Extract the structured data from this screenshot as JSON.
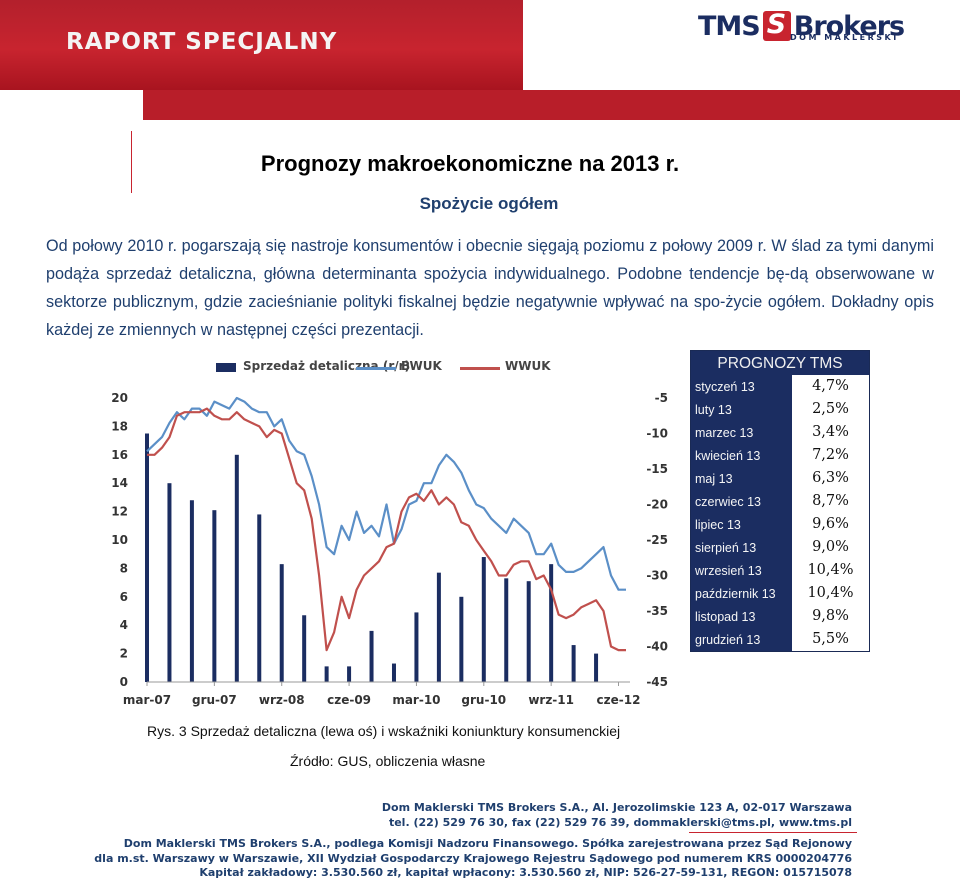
{
  "header": {
    "banner_text": "RAPORT SPECJALNY",
    "logo_brand_left": "TMS",
    "logo_brand_right": "Brokers",
    "logo_subtitle": "DOM MAKLERSKI",
    "accent_color": "#c8242f",
    "navy_color": "#1b2d61"
  },
  "document": {
    "title": "Prognozy makroekonomiczne na 2013 r.",
    "subtitle": "Spożycie ogółem",
    "body": "Od połowy 2010 r. pogarszają się nastroje konsumentów i obecnie sięgają poziomu z połowy 2009 r. W ślad za tymi danymi podąża sprzedaż detaliczna, główna determinanta spożycia indywidualnego. Podobne tendencje bę-dą obserwowane w sektorze publicznym, gdzie zacieśnianie polityki fiskalnej będzie negatywnie wpływać na spo-życie ogółem. Dokładny opis każdej ze zmiennych w następnej części prezentacji.",
    "caption": "Rys. 3 Sprzedaż detaliczna (lewa oś) i wskaźniki koniunktury konsumenckiej",
    "source": "Źródło: GUS, obliczenia własne"
  },
  "chart_data": {
    "type": "bar",
    "series": [
      {
        "name": "Sprzedaż detaliczna (r/r)",
        "kind": "bar",
        "axis": "left",
        "color": "#1b2d61",
        "x": [
          0,
          3,
          6,
          9,
          12,
          15,
          18,
          21,
          24,
          27,
          30,
          33,
          36,
          39,
          42,
          45,
          48,
          51,
          54,
          57,
          60,
          63
        ],
        "values": [
          17.5,
          14.0,
          12.8,
          12.1,
          16.0,
          11.8,
          8.3,
          4.7,
          1.1,
          1.1,
          3.6,
          1.3,
          4.9,
          7.7,
          6.0,
          8.8,
          7.3,
          7.1,
          8.3,
          2.6,
          2.0,
          null
        ]
      },
      {
        "name": "BWUK",
        "kind": "line",
        "axis": "right",
        "color": "#5b8fc7",
        "x": [
          0,
          1,
          2,
          3,
          4,
          5,
          6,
          7,
          8,
          9,
          10,
          11,
          12,
          13,
          14,
          15,
          16,
          17,
          18,
          19,
          20,
          21,
          22,
          23,
          24,
          25,
          26,
          27,
          28,
          29,
          30,
          31,
          32,
          33,
          34,
          35,
          36,
          37,
          38,
          39,
          40,
          41,
          42,
          43,
          44,
          45,
          46,
          47,
          48,
          49,
          50,
          51,
          52,
          53,
          54,
          55,
          56,
          57,
          58,
          59,
          60,
          61,
          62,
          63,
          64
        ],
        "values": [
          -12.5,
          -11.5,
          -10.5,
          -8.5,
          -7,
          -8,
          -6.5,
          -6.5,
          -7.5,
          -5.5,
          -6,
          -6.5,
          -5,
          -5.5,
          -6.5,
          -7,
          -7,
          -9,
          -8,
          -11,
          -12.5,
          -13,
          -16,
          -20,
          -26,
          -27,
          -23,
          -25,
          -21,
          -24,
          -23,
          -24.5,
          -20,
          -25.5,
          -23.5,
          -20,
          -19.5,
          -17,
          -17,
          -14.5,
          -13,
          -14,
          -15.5,
          -18,
          -20,
          -20.5,
          -22,
          -23,
          -24,
          -22,
          -23,
          -24,
          -27,
          -27,
          -25.5,
          -28.5,
          -29.5,
          -29.5,
          -29,
          -28,
          -27,
          -26,
          -30,
          -32,
          -32
        ]
      },
      {
        "name": "WWUK",
        "kind": "line",
        "axis": "right",
        "color": "#c0504d",
        "x": [
          0,
          1,
          2,
          3,
          4,
          5,
          6,
          7,
          8,
          9,
          10,
          11,
          12,
          13,
          14,
          15,
          16,
          17,
          18,
          19,
          20,
          21,
          22,
          23,
          24,
          25,
          26,
          27,
          28,
          29,
          30,
          31,
          32,
          33,
          34,
          35,
          36,
          37,
          38,
          39,
          40,
          41,
          42,
          43,
          44,
          45,
          46,
          47,
          48,
          49,
          50,
          51,
          52,
          53,
          54,
          55,
          56,
          57,
          58,
          59,
          60,
          61,
          62,
          63,
          64
        ],
        "values": [
          -13,
          -13,
          -12,
          -10.5,
          -7.5,
          -7,
          -7,
          -7,
          -6.5,
          -7.5,
          -8,
          -8,
          -7,
          -8,
          -8.5,
          -9,
          -10.5,
          -9.5,
          -10,
          -13.5,
          -17,
          -18,
          -22,
          -30,
          -40.5,
          -38,
          -33,
          -36,
          -32,
          -30,
          -29,
          -28,
          -26,
          -25.5,
          -21,
          -19,
          -18.5,
          -19.5,
          -18,
          -20,
          -19,
          -20,
          -22.5,
          -23,
          -25,
          -26.5,
          -28,
          -30,
          -30,
          -28.5,
          -28,
          -28,
          -30.5,
          -30,
          -32,
          -35.5,
          -36,
          -35.5,
          -34.5,
          -34,
          -33.5,
          -35,
          -40,
          -40.5,
          -40.5
        ]
      }
    ],
    "x_tick_labels": [
      "mar-07",
      "gru-07",
      "wrz-08",
      "cze-09",
      "mar-10",
      "gru-10",
      "wrz-11",
      "cze-12"
    ],
    "x_tick_positions": [
      0,
      9,
      18,
      27,
      36,
      45,
      54,
      63
    ],
    "ylim_left": [
      0,
      20
    ],
    "yticks_left": [
      0,
      2,
      4,
      6,
      8,
      10,
      12,
      14,
      16,
      18,
      20
    ],
    "ylim_right": [
      -45,
      -5
    ],
    "yticks_right": [
      -5,
      -10,
      -15,
      -20,
      -25,
      -30,
      -35,
      -40,
      -45
    ],
    "legend_position": "top",
    "grid": false
  },
  "forecast": {
    "title": "PROGNOZY TMS",
    "rows": [
      {
        "month": "styczeń 13",
        "value": "4,7%"
      },
      {
        "month": "luty 13",
        "value": "2,5%"
      },
      {
        "month": "marzec 13",
        "value": "3,4%"
      },
      {
        "month": "kwiecień 13",
        "value": "7,2%"
      },
      {
        "month": "maj 13",
        "value": "6,3%"
      },
      {
        "month": "czerwiec 13",
        "value": "8,7%"
      },
      {
        "month": "lipiec 13",
        "value": "9,6%"
      },
      {
        "month": "sierpień 13",
        "value": "9,0%"
      },
      {
        "month": "wrzesień 13",
        "value": "10,4%"
      },
      {
        "month": "październik 13",
        "value": "10,4%"
      },
      {
        "month": "listopad 13",
        "value": "9,8%"
      },
      {
        "month": "grudzień 13",
        "value": "5,5%"
      }
    ]
  },
  "footer": {
    "line1": "Dom Maklerski TMS Brokers S.A., Al. Jerozolimskie 123 A, 02-017 Warszawa",
    "line2": "tel. (22) 529 76 30, fax (22) 529 76 39, dommaklerski@tms.pl, www.tms.pl",
    "line3": "Dom Maklerski TMS Brokers S.A., podlega Komisji Nadzoru Finansowego. Spółka zarejestrowana przez Sąd Rejonowy",
    "line4": "dla m.st. Warszawy w Warszawie, XII Wydział Gospodarczy Krajowego Rejestru Sądowego pod numerem KRS 0000204776",
    "line5": "Kapitał zakładowy: 3.530.560 zł, kapitał wpłacony: 3.530.560 zł, NIP: 526-27-59-131, REGON: 015715078"
  }
}
